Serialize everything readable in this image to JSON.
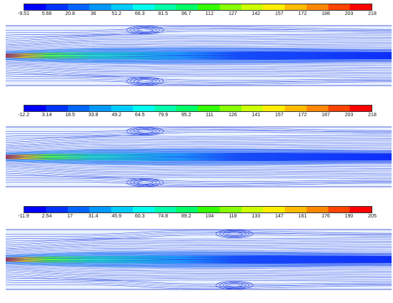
{
  "panels": [
    {
      "id": "panel-1",
      "scale_labels": [
        "-9.51",
        "5.66",
        "20.8",
        "36",
        "51.2",
        "66.3",
        "81.5",
        "96.7",
        "112",
        "127",
        "142",
        "157",
        "172",
        "188",
        "203",
        "218"
      ],
      "scale_min": -9.51,
      "scale_max": 218
    },
    {
      "id": "panel-2",
      "scale_labels": [
        "-12.2",
        "3.14",
        "18.5",
        "33.8",
        "49.2",
        "64.5",
        "79.9",
        "95.2",
        "111",
        "126",
        "141",
        "157",
        "172",
        "187",
        "203",
        "218"
      ],
      "scale_min": -12.2,
      "scale_max": 218
    },
    {
      "id": "panel-3",
      "scale_labels": [
        "-11.9",
        "2.54",
        "17",
        "31.4",
        "45.9",
        "60.3",
        "74.8",
        "89.2",
        "104",
        "118",
        "133",
        "147",
        "161",
        "176",
        "190",
        "205"
      ],
      "scale_min": -11.9,
      "scale_max": 205
    }
  ],
  "colors": {
    "streamline": "#1f3de0",
    "jet_core": "#ff3b00",
    "jet_mid": "#28d8c8",
    "background_flow": "#2d6cff",
    "low": "#0000ff",
    "high": "#ff0000"
  }
}
